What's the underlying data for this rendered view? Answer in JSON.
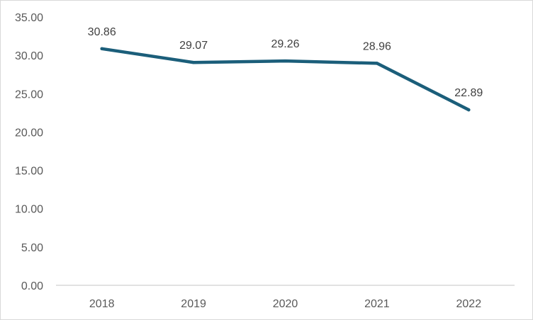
{
  "chart_data": {
    "type": "line",
    "title": "",
    "xlabel": "",
    "ylabel": "",
    "categories": [
      "2018",
      "2019",
      "2020",
      "2021",
      "2022"
    ],
    "series": [
      {
        "values": [
          30.86,
          29.07,
          29.26,
          28.96,
          22.89
        ],
        "color": "#1b5e7a",
        "data_labels": [
          "30.86",
          "29.07",
          "29.26",
          "28.96",
          "22.89"
        ]
      }
    ],
    "ylim": [
      0,
      35
    ],
    "y_ticks": [
      "0.00",
      "5.00",
      "10.00",
      "15.00",
      "20.00",
      "25.00",
      "30.00",
      "35.00"
    ],
    "y_tick_values": [
      0,
      5,
      10,
      15,
      20,
      25,
      30,
      35
    ],
    "grid": false,
    "legend": "none",
    "axis_color": "#d9d9d9",
    "label_color": "#595959"
  }
}
